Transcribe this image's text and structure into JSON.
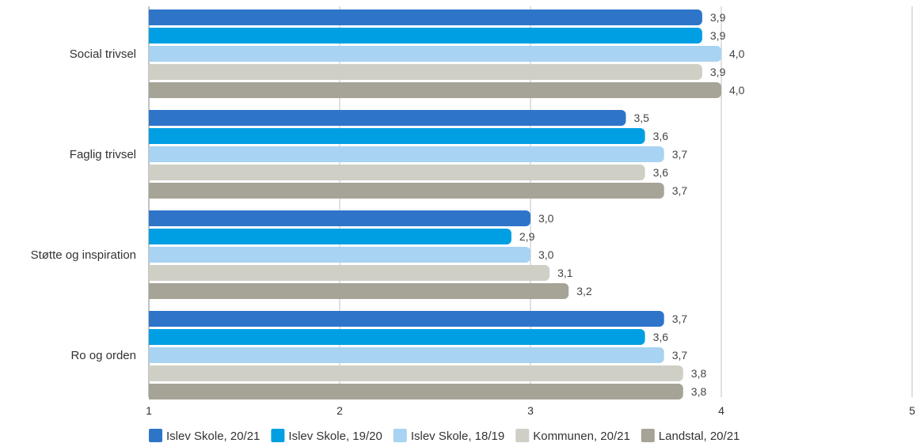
{
  "chart_data": {
    "type": "bar",
    "orientation": "horizontal",
    "title": "",
    "xlabel": "",
    "ylabel": "",
    "xlim": [
      1,
      5
    ],
    "x_ticks": [
      "1",
      "2",
      "3",
      "4",
      "5"
    ],
    "grid": true,
    "legend_position": "bottom",
    "categories": [
      "Social trivsel",
      "Faglig trivsel",
      "Støtte og inspiration",
      "Ro og orden"
    ],
    "series": [
      {
        "name": "Islev Skole, 20/21",
        "color": "#2e75c9",
        "values": [
          3.9,
          3.5,
          3.0,
          3.7
        ],
        "labels": [
          "3,9",
          "3,5",
          "3,0",
          "3,7"
        ]
      },
      {
        "name": "Islev Skole, 19/20",
        "color": "#009fe3",
        "values": [
          3.9,
          3.6,
          2.9,
          3.6
        ],
        "labels": [
          "3,9",
          "3,6",
          "2,9",
          "3,6"
        ]
      },
      {
        "name": "Islev Skole, 18/19",
        "color": "#a8d3f2",
        "values": [
          4.0,
          3.7,
          3.0,
          3.7
        ],
        "labels": [
          "4,0",
          "3,7",
          "3,0",
          "3,7"
        ]
      },
      {
        "name": "Kommunen, 20/21",
        "color": "#cfcfc6",
        "values": [
          3.9,
          3.6,
          3.1,
          3.8
        ],
        "labels": [
          "3,9",
          "3,6",
          "3,1",
          "3,8"
        ]
      },
      {
        "name": "Landstal, 20/21",
        "color": "#a6a397",
        "values": [
          4.0,
          3.7,
          3.2,
          3.8
        ],
        "labels": [
          "4,0",
          "3,7",
          "3,2",
          "3,8"
        ]
      }
    ]
  }
}
